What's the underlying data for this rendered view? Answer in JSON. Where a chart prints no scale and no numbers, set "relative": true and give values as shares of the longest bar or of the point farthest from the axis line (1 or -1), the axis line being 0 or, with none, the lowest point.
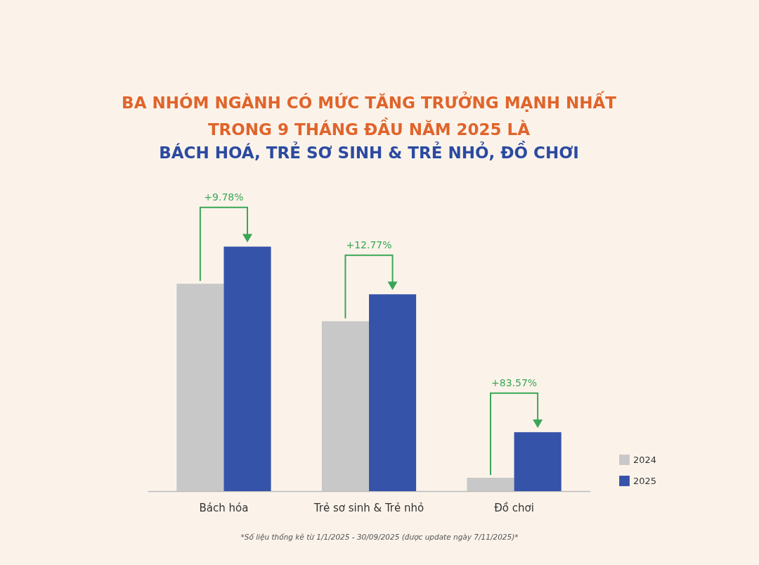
{
  "chart_data": {
    "type": "bar",
    "title": "BA NHÓM NGÀNH CÓ MỨC TĂNG TRƯỞNG MẠNH NHẤT\nTRONG 9 THÁNG ĐẦU NĂM 2025 LÀ",
    "subtitle": "BÁCH HOÁ, TRẺ SƠ SINH & TRẺ NHỎ, ĐỒ CHƠI",
    "categories": [
      "Bách hóa",
      "Trẻ sơ sinh & Trẻ nhỏ",
      "Đồ chơi"
    ],
    "relative": true,
    "series": [
      {
        "name": "2024",
        "color": "#c8c8c8",
        "values": [
          0.848,
          0.695,
          0.055
        ]
      },
      {
        "name": "2025",
        "color": "#3553a8",
        "values": [
          1,
          0.805,
          0.241
        ]
      }
    ],
    "annotations": [
      "+9.78%",
      "+12.77%",
      "+83.57%",
      "*Số liệu thống kê từ 1/1/2025 - 30/09/2025 (được update ngày 7/11/2025)*"
    ],
    "legend": "bottom right"
  }
}
